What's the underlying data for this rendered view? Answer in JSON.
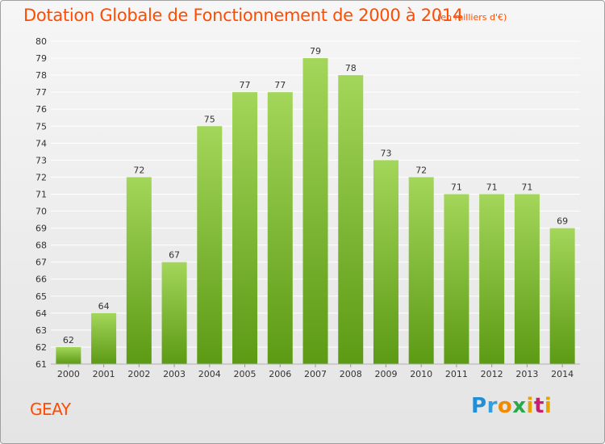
{
  "title": "Dotation Globale de Fonctionnement de 2000 à 2014",
  "unit_note": "(en milliers d'€)",
  "commune": "GEAY",
  "logo_text": "Proxiti",
  "colors": {
    "title": "#ff4c00",
    "bar_light": "#a3d65a",
    "bar_dark": "#5c9a14",
    "grid": "#ffffff",
    "axis_text": "#333333"
  },
  "chart_data": {
    "type": "bar",
    "title": "Dotation Globale de Fonctionnement de 2000 à 2014",
    "categories": [
      "2000",
      "2001",
      "2002",
      "2003",
      "2004",
      "2005",
      "2006",
      "2007",
      "2008",
      "2009",
      "2010",
      "2011",
      "2012",
      "2013",
      "2014"
    ],
    "values": [
      62,
      64,
      72,
      67,
      75,
      77,
      77,
      79,
      78,
      73,
      72,
      71,
      71,
      71,
      69
    ],
    "ylim": [
      61,
      80
    ],
    "yticks": [
      61,
      62,
      63,
      64,
      65,
      66,
      67,
      68,
      69,
      70,
      71,
      72,
      73,
      74,
      75,
      76,
      77,
      78,
      79,
      80
    ],
    "grid": true,
    "data_labels": true,
    "xlabel": "",
    "ylabel": ""
  }
}
